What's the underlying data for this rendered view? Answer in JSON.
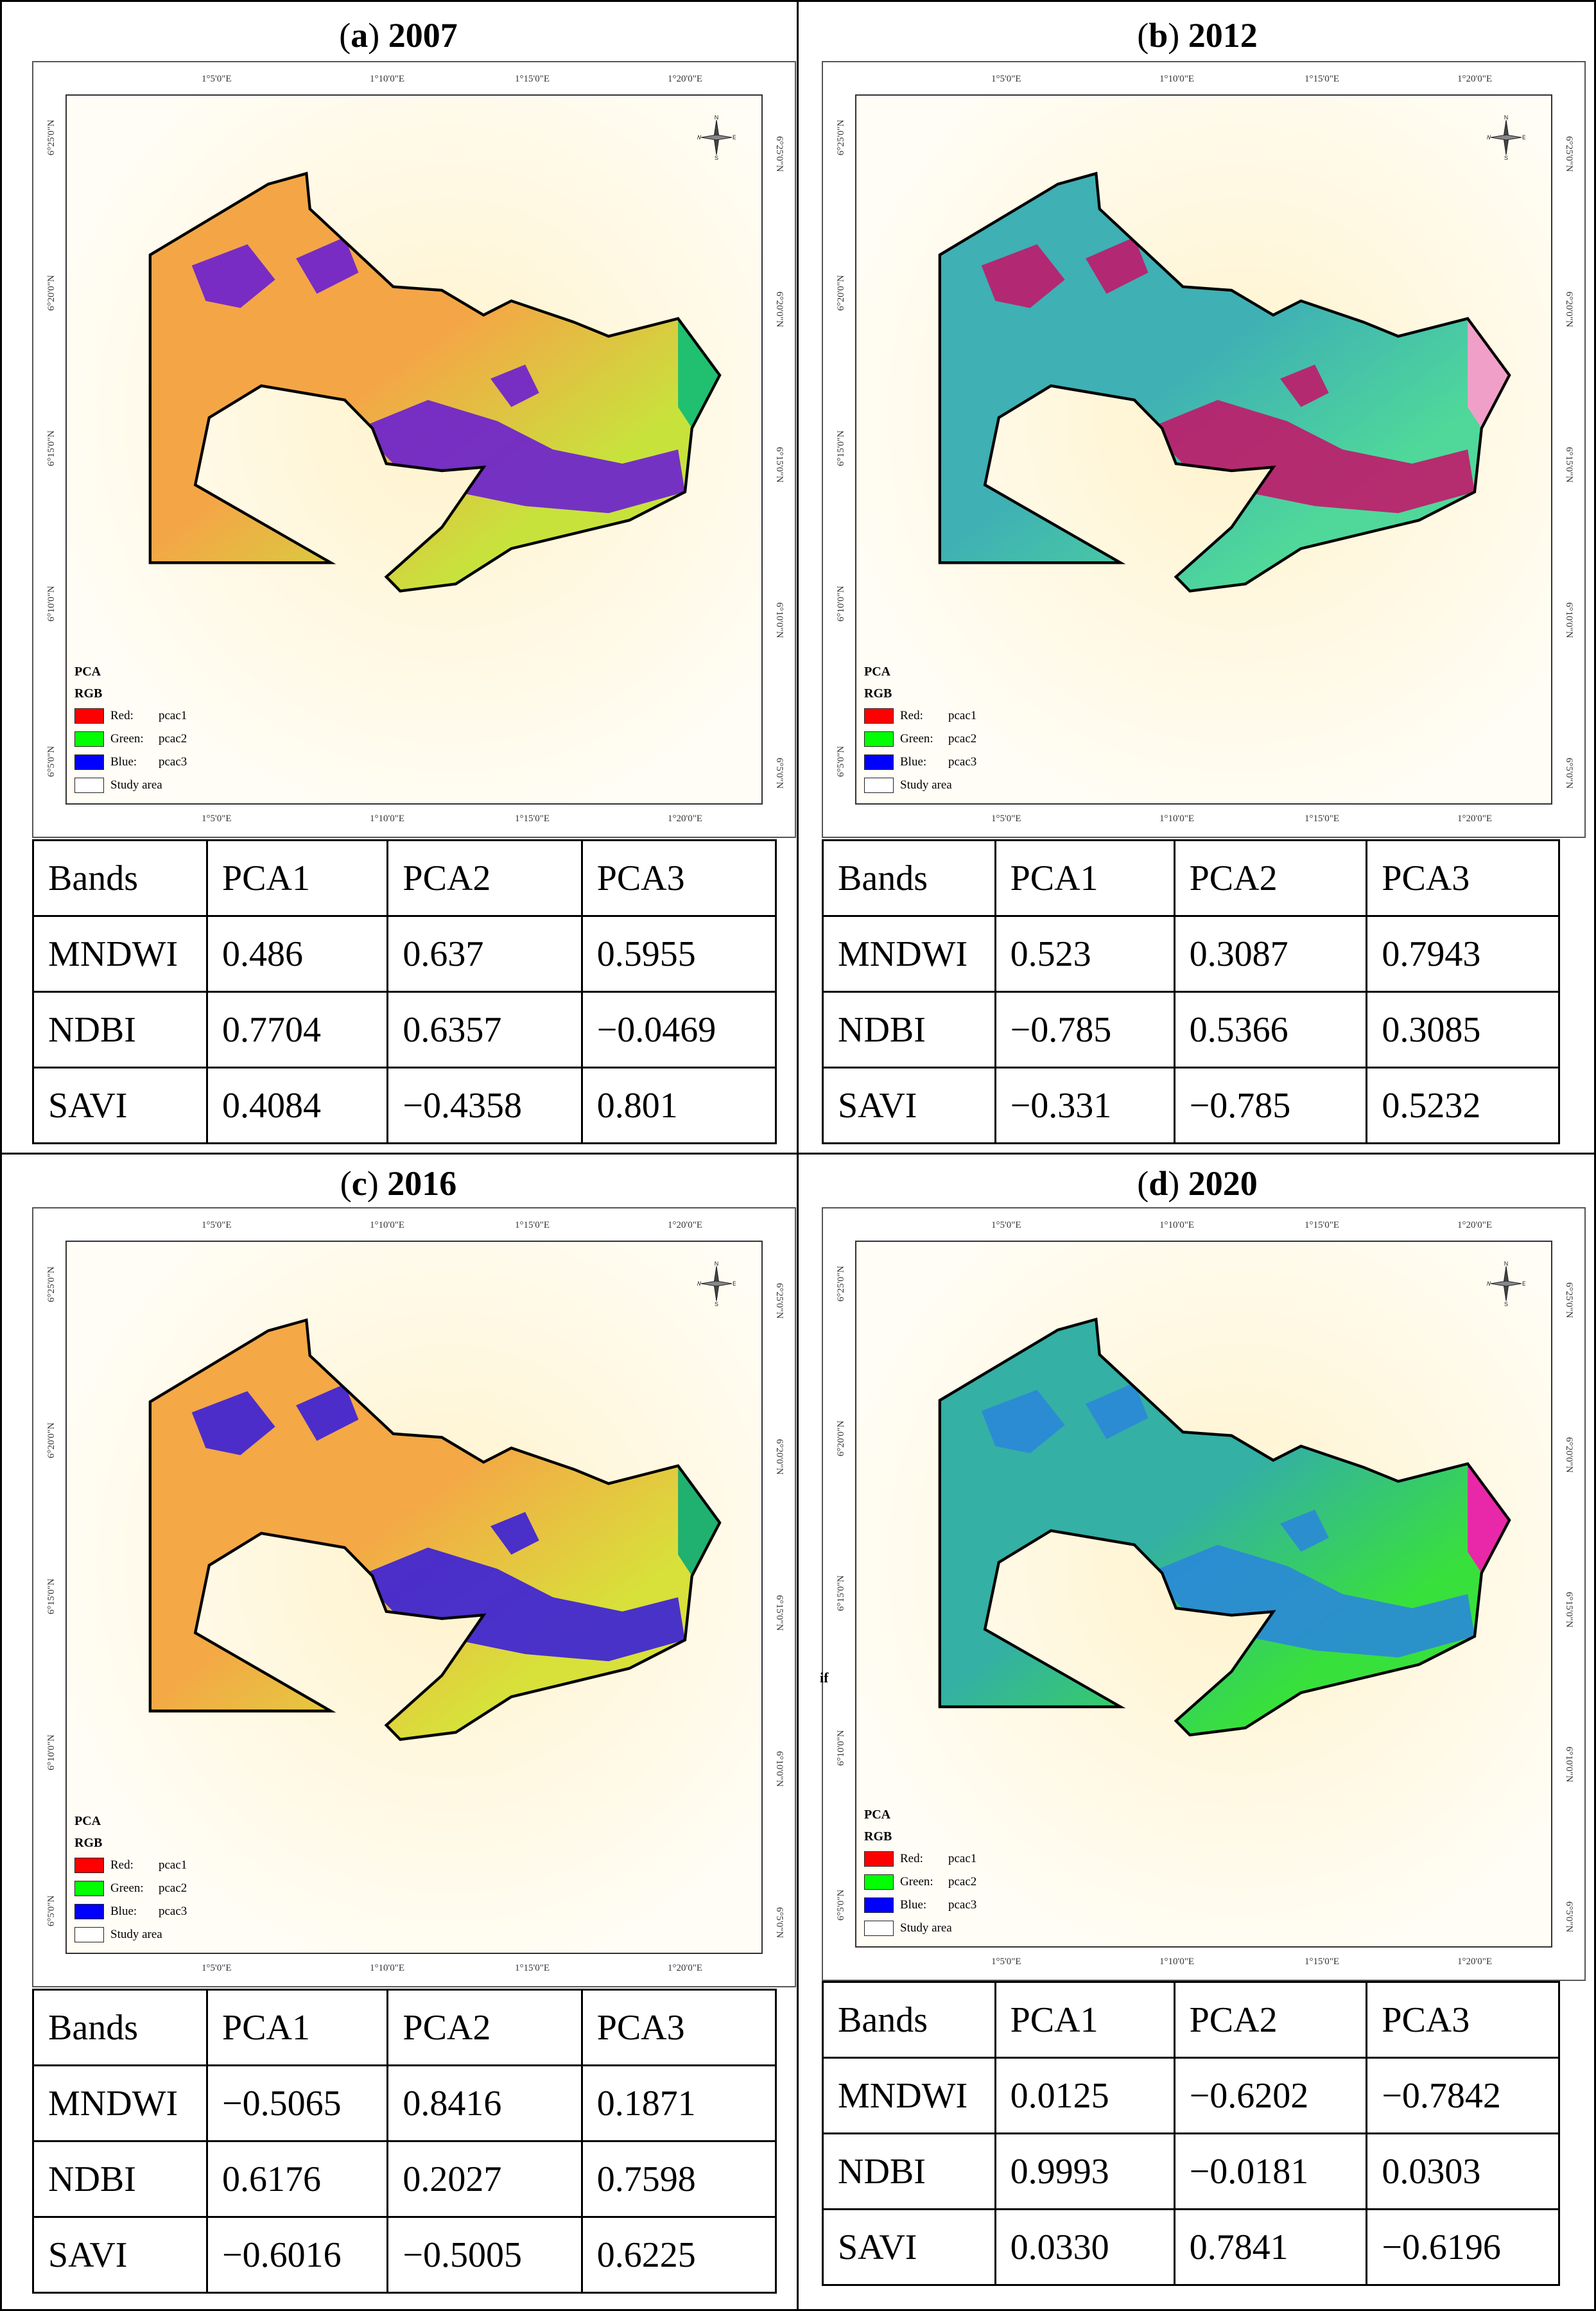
{
  "legend": {
    "title1": "PCA",
    "title2": "RGB",
    "items": [
      {
        "label": "Red:",
        "value": "pcac1",
        "color": "#ff0000"
      },
      {
        "label": "Green:",
        "value": "pcac2",
        "color": "#00ff00"
      },
      {
        "label": "Blue:",
        "value": "pcac3",
        "color": "#0000ff"
      },
      {
        "label": "Study area",
        "value": "",
        "color": "#ffffff"
      }
    ]
  },
  "ticks": {
    "top": [
      "1°5'0\"E",
      "1°10'0\"E",
      "1°15'0\"E",
      "1°20'0\"E"
    ],
    "bottom": [
      "1°5'0\"E",
      "1°10'0\"E",
      "1°15'0\"E",
      "1°20'0\"E"
    ],
    "left": [
      "6°25'0\"N",
      "6°20'0\"N",
      "6°15'0\"N",
      "6°10'0\"N",
      "6°5'0\"N"
    ],
    "right": [
      "6°25'0\"N",
      "6°20'0\"N",
      "6°15'0\"N",
      "6°10'0\"N",
      "6°5'0\"N"
    ]
  },
  "north_arrow": {
    "n": "N",
    "s": "S",
    "e": "E",
    "w": "W"
  },
  "stray_label": "if",
  "panels": [
    {
      "letter": "a",
      "year": "2007",
      "colors": {
        "base": "#f4a646",
        "mid": "#c8e23c",
        "water": "#6a1fd0",
        "edge": "#20c070"
      },
      "table": {
        "header": [
          "Bands",
          "PCA1",
          "PCA2",
          "PCA3"
        ],
        "rows": [
          [
            "MNDWI",
            "0.486",
            "0.637",
            "0.5955"
          ],
          [
            "NDBI",
            "0.7704",
            "0.6357",
            "−0.0469"
          ],
          [
            "SAVI",
            "0.4084",
            "−0.4358",
            "0.801"
          ]
        ]
      }
    },
    {
      "letter": "b",
      "year": "2012",
      "colors": {
        "base": "#3fb0b4",
        "mid": "#4fd89a",
        "water": "#c01a6a",
        "edge": "#f0a0c8"
      },
      "table": {
        "header": [
          "Bands",
          "PCA1",
          "PCA2",
          "PCA3"
        ],
        "rows": [
          [
            "MNDWI",
            "0.523",
            "0.3087",
            "0.7943"
          ],
          [
            "NDBI",
            "−0.785",
            "0.5366",
            "0.3085"
          ],
          [
            "SAVI",
            "−0.331",
            "−0.785",
            "0.5232"
          ]
        ]
      }
    },
    {
      "letter": "c",
      "year": "2016",
      "colors": {
        "base": "#f4a846",
        "mid": "#d8e03a",
        "water": "#3a1fd8",
        "edge": "#20b070"
      },
      "table": {
        "header": [
          "Bands",
          "PCA1",
          "PCA2",
          "PCA3"
        ],
        "rows": [
          [
            "MNDWI",
            "−0.5065",
            "0.8416",
            "0.1871"
          ],
          [
            "NDBI",
            "0.6176",
            "0.2027",
            "0.7598"
          ],
          [
            "SAVI",
            "−0.6016",
            "−0.5005",
            "0.6225"
          ]
        ]
      }
    },
    {
      "letter": "d",
      "year": "2020",
      "colors": {
        "base": "#34b0a4",
        "mid": "#38e03c",
        "water": "#2a88d8",
        "edge": "#e828a8"
      },
      "table": {
        "header": [
          "Bands",
          "PCA1",
          "PCA2",
          "PCA3"
        ],
        "rows": [
          [
            "MNDWI",
            "0.0125",
            "−0.6202",
            "−0.7842"
          ],
          [
            "NDBI",
            "0.9993",
            "−0.0181",
            "0.0303"
          ],
          [
            "SAVI",
            "0.0330",
            "0.7841",
            "−0.6196"
          ]
        ]
      }
    }
  ]
}
